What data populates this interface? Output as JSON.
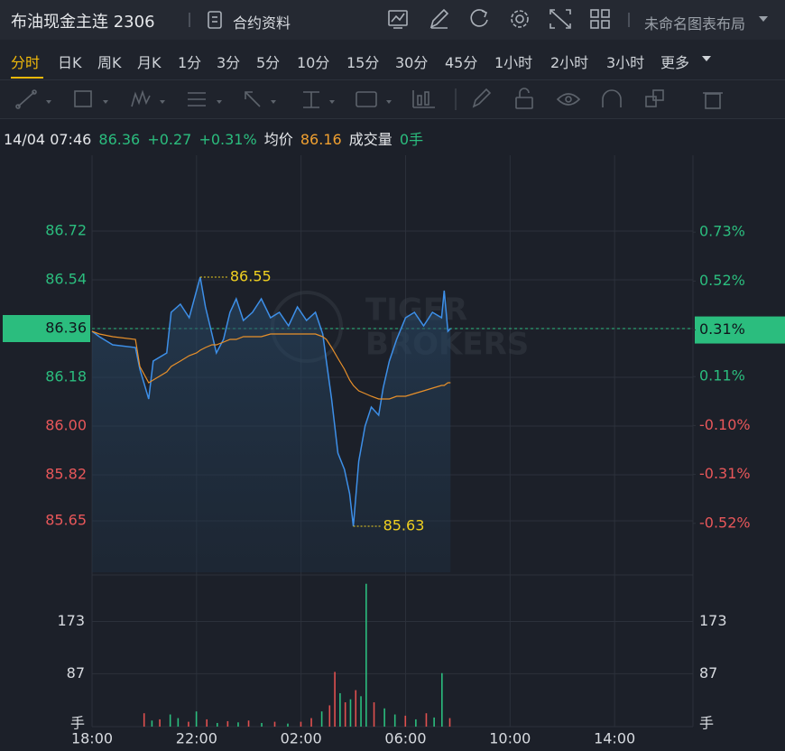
{
  "header": {
    "title": "布油现金主连 2306",
    "info": "合约资料",
    "layout": "未命名图表布局"
  },
  "periods": [
    "分时",
    "日K",
    "周K",
    "月K",
    "1分",
    "3分",
    "5分",
    "10分",
    "15分",
    "30分",
    "45分",
    "1小时",
    "2小时",
    "3小时",
    "更多"
  ],
  "info_bar": {
    "time": "14/04 07:46",
    "price": "86.36",
    "change": "+0.27",
    "change_pct": "+0.31%",
    "avg_label": "均价",
    "avg": "86.16",
    "volume_label": "成交量",
    "volume": "0手"
  },
  "watermark": [
    "TIGER",
    "BROKERS"
  ],
  "chart_data": [
    {
      "type": "line",
      "x": [
        0,
        0.28,
        0.79,
        1.66,
        1.83,
        2.17,
        2.34,
        2.86,
        3.03,
        3.38,
        3.72,
        4.0,
        4.14,
        4.34,
        4.59,
        4.76,
        5.03,
        5.28,
        5.52,
        5.79,
        6.14,
        6.48,
        6.83,
        7.17,
        7.52,
        7.86,
        8.21,
        8.55,
        8.83,
        8.97,
        9.17,
        9.41,
        9.66,
        9.86,
        10.0,
        10.21,
        10.45,
        10.69,
        10.97,
        11.14,
        11.38,
        11.66,
        12.0,
        12.34,
        12.69,
        13.03,
        13.38,
        13.48,
        13.62,
        13.72
      ],
      "series": [
        {
          "color": "#3d8fe8",
          "values": [
            86.35,
            86.33,
            86.3,
            86.29,
            86.21,
            86.1,
            86.24,
            86.27,
            86.42,
            86.45,
            86.4,
            86.5,
            86.55,
            86.44,
            86.34,
            86.27,
            86.32,
            86.42,
            86.47,
            86.39,
            86.42,
            86.47,
            86.4,
            86.42,
            86.37,
            86.44,
            86.39,
            86.42,
            86.34,
            86.24,
            86.1,
            85.9,
            85.84,
            85.75,
            85.63,
            85.87,
            86.0,
            86.07,
            86.04,
            86.14,
            86.24,
            86.32,
            86.4,
            86.42,
            86.37,
            86.42,
            86.4,
            86.5,
            86.35,
            86.36
          ]
        },
        {
          "color": "#e8902a",
          "values": [
            86.35,
            86.34,
            86.33,
            86.32,
            86.22,
            86.16,
            86.17,
            86.2,
            86.22,
            86.24,
            86.26,
            86.27,
            86.28,
            86.29,
            86.3,
            86.3,
            86.31,
            86.32,
            86.32,
            86.33,
            86.33,
            86.33,
            86.34,
            86.34,
            86.34,
            86.34,
            86.34,
            86.34,
            86.33,
            86.32,
            86.29,
            86.25,
            86.21,
            86.17,
            86.15,
            86.13,
            86.12,
            86.11,
            86.1,
            86.1,
            86.1,
            86.11,
            86.11,
            86.12,
            86.13,
            86.14,
            86.15,
            86.15,
            86.16,
            86.16
          ]
        }
      ],
      "last": 86.36,
      "xlim": [
        0,
        23
      ],
      "xticks": [
        {
          "value": 0,
          "label": "18:00"
        },
        {
          "value": 4,
          "label": "22:00"
        },
        {
          "value": 8,
          "label": "02:00"
        },
        {
          "value": 12,
          "label": "06:00"
        },
        {
          "value": 16,
          "label": "10:00"
        },
        {
          "value": 20,
          "label": "14:00"
        }
      ],
      "ylim": [
        85.46,
        87.0
      ],
      "yticks": [
        86.72,
        86.54,
        86.36,
        86.18,
        {
          "value": 86,
          "label": "86.00"
        },
        85.82,
        85.65
      ],
      "y2lim": [
        -0.73,
        1.06
      ],
      "y2ticks": [
        {
          "value": 0.73,
          "label": "0.73%"
        },
        {
          "value": 0.52,
          "label": "0.52%"
        },
        {
          "value": 0.31,
          "label": "0.31%"
        },
        {
          "value": 0.11,
          "label": "0.11%"
        },
        {
          "value": -0.1,
          "label": "-0.10%"
        },
        {
          "value": -0.31,
          "label": "-0.31%"
        },
        {
          "value": -0.52,
          "label": "-0.52%"
        }
      ],
      "annotations": [
        {
          "text": "86.55",
          "x": 4.14,
          "y": 86.55
        },
        {
          "text": "85.63",
          "x": 10.0,
          "y": 85.63
        }
      ],
      "grid": true
    },
    {
      "type": "bar",
      "x": [
        2.0,
        2.3,
        2.6,
        3.0,
        3.3,
        3.7,
        4.0,
        4.4,
        4.8,
        5.2,
        5.6,
        6.0,
        6.5,
        7.0,
        7.5,
        8.0,
        8.4,
        8.8,
        9.1,
        9.3,
        9.5,
        9.7,
        9.9,
        10.1,
        10.3,
        10.5,
        10.8,
        11.2,
        11.6,
        12.0,
        12.4,
        12.8,
        13.1,
        13.4,
        13.7
      ],
      "values": [
        22,
        10,
        12,
        20,
        14,
        8,
        25,
        12,
        6,
        9,
        7,
        10,
        6,
        8,
        5,
        8,
        14,
        25,
        35,
        90,
        55,
        40,
        45,
        60,
        50,
        235,
        40,
        30,
        20,
        18,
        12,
        22,
        15,
        88,
        14
      ],
      "colors": [
        "#e0504f",
        "#2bbd7e",
        "#e0504f",
        "#2bbd7e",
        "#2bbd7e",
        "#e0504f",
        "#2bbd7e",
        "#e0504f",
        "#2bbd7e",
        "#e0504f",
        "#2bbd7e",
        "#e0504f",
        "#2bbd7e",
        "#e0504f",
        "#2bbd7e",
        "#e0504f",
        "#e0504f",
        "#2bbd7e",
        "#e0504f",
        "#e0504f",
        "#2bbd7e",
        "#e0504f",
        "#2bbd7e",
        "#e0504f",
        "#2bbd7e",
        "#2bbd7e",
        "#e0504f",
        "#2bbd7e",
        "#2bbd7e",
        "#e0504f",
        "#2bbd7e",
        "#e0504f",
        "#2bbd7e",
        "#2bbd7e",
        "#e0504f"
      ],
      "xlim": [
        0,
        23
      ],
      "ylim": [
        0,
        245
      ],
      "yticks": [
        173,
        87,
        {
          "value": 0,
          "label": "手"
        }
      ]
    }
  ]
}
